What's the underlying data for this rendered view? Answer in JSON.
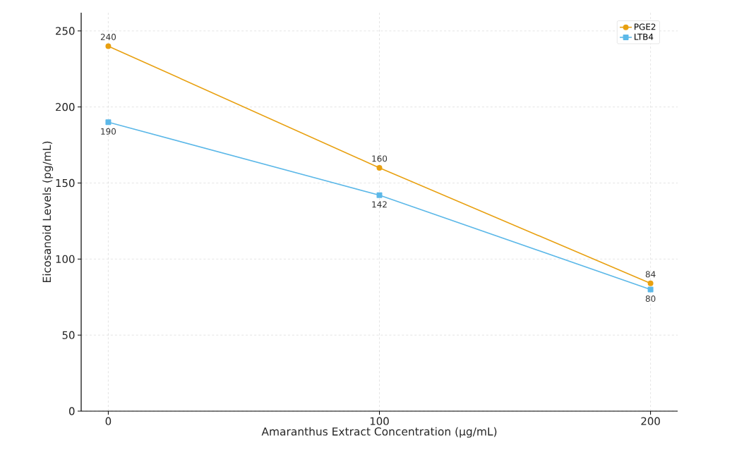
{
  "chart_data": {
    "type": "line",
    "xlabel": "Amaranthus Extract Concentration (µg/mL)",
    "ylabel": "Eicosanoid Levels (pg/mL)",
    "x": [
      0,
      100,
      200
    ],
    "series": [
      {
        "name": "PGE2",
        "color": "#e8a010",
        "marker": "circle",
        "values": [
          240,
          160,
          84
        ]
      },
      {
        "name": "LTB4",
        "color": "#5cb8e8",
        "marker": "square",
        "values": [
          190,
          142,
          80
        ]
      }
    ],
    "xlim": [
      -10,
      210
    ],
    "ylim": [
      0,
      262
    ],
    "xticks": [
      0,
      100,
      200
    ],
    "yticks": [
      0,
      50,
      100,
      150,
      200,
      250
    ],
    "grid": true,
    "legend": "top right",
    "data_labels": true,
    "line_style": "solid"
  }
}
